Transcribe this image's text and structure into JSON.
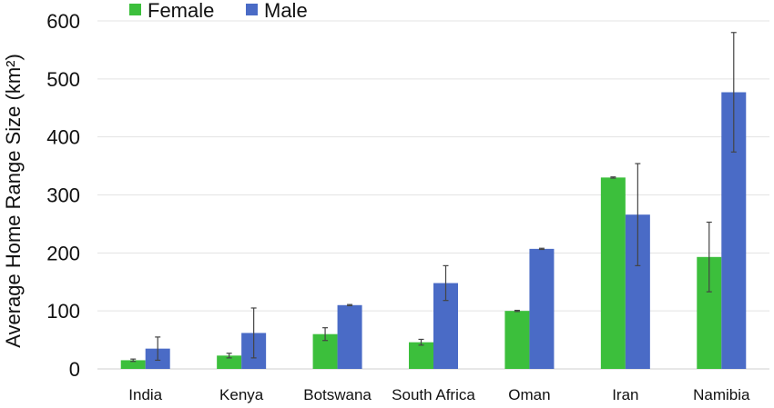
{
  "chart_data": {
    "type": "bar",
    "title": "",
    "xlabel": "",
    "ylabel": "Average Home Range Size (km²)",
    "ylim": [
      0,
      600
    ],
    "yticks": [
      0,
      100,
      200,
      300,
      400,
      500,
      600
    ],
    "grid": true,
    "legend_position": "top-left",
    "categories": [
      "India",
      "Kenya",
      "Botswana",
      "South Africa",
      "Oman",
      "Iran",
      "Namibia"
    ],
    "series": [
      {
        "name": "Female",
        "color": "#3cbf3c",
        "values": [
          15,
          23,
          60,
          46,
          100,
          330,
          193
        ],
        "errors": [
          2,
          4,
          11,
          5,
          1,
          1,
          60
        ]
      },
      {
        "name": "Male",
        "color": "#4a6bc6",
        "values": [
          35,
          62,
          110,
          148,
          207,
          266,
          477
        ],
        "errors": [
          20,
          43,
          1,
          30,
          1,
          88,
          103
        ]
      }
    ]
  }
}
